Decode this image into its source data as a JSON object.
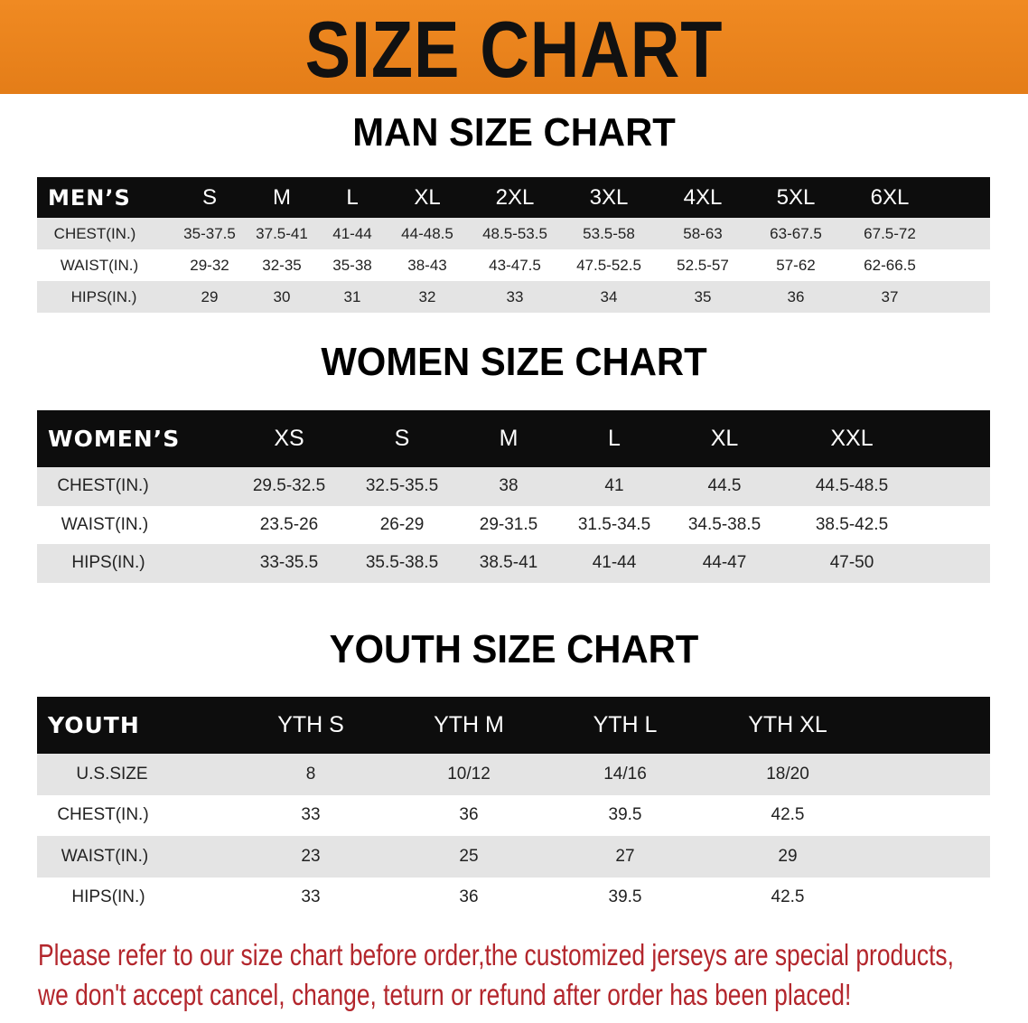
{
  "banner": {
    "title": "SIZE CHART",
    "color": "#e8841f"
  },
  "men": {
    "title": "MAN SIZE CHART",
    "header": "MEN’S",
    "sizes": [
      "S",
      "M",
      "L",
      "XL",
      "2XL",
      "3XL",
      "4XL",
      "5XL",
      "6XL"
    ],
    "rows": [
      {
        "label": "CHEST(IN.)",
        "values": [
          "35-37.5",
          "37.5-41",
          "41-44",
          "44-48.5",
          "48.5-53.5",
          "53.5-58",
          "58-63",
          "63-67.5",
          "67.5-72"
        ]
      },
      {
        "label": "WAIST(IN.)",
        "values": [
          "29-32",
          "32-35",
          "35-38",
          "38-43",
          "43-47.5",
          "47.5-52.5",
          "52.5-57",
          "57-62",
          "62-66.5"
        ]
      },
      {
        "label": "HIPS(IN.)",
        "values": [
          "29",
          "30",
          "31",
          "32",
          "33",
          "34",
          "35",
          "36",
          "37"
        ]
      }
    ]
  },
  "women": {
    "title": "WOMEN SIZE CHART",
    "header": "WOMEN’S",
    "sizes": [
      "XS",
      "S",
      "M",
      "L",
      "XL",
      "XXL"
    ],
    "rows": [
      {
        "label": "CHEST(IN.)",
        "values": [
          "29.5-32.5",
          "32.5-35.5",
          "38",
          "41",
          "44.5",
          "44.5-48.5"
        ]
      },
      {
        "label": "WAIST(IN.)",
        "values": [
          "23.5-26",
          "26-29",
          "29-31.5",
          "31.5-34.5",
          "34.5-38.5",
          "38.5-42.5"
        ]
      },
      {
        "label": "HIPS(IN.)",
        "values": [
          "33-35.5",
          "35.5-38.5",
          "38.5-41",
          "41-44",
          "44-47",
          "47-50"
        ]
      }
    ]
  },
  "youth": {
    "title": "YOUTH SIZE CHART",
    "header": "YOUTH",
    "sizes": [
      "YTH S",
      "YTH M",
      "YTH L",
      "YTH XL"
    ],
    "rows": [
      {
        "label": "U.S.SIZE",
        "values": [
          "8",
          "10/12",
          "14/16",
          "18/20"
        ]
      },
      {
        "label": "CHEST(IN.)",
        "values": [
          "33",
          "36",
          "39.5",
          "42.5"
        ]
      },
      {
        "label": "WAIST(IN.)",
        "values": [
          "23",
          "25",
          "27",
          "29"
        ]
      },
      {
        "label": "HIPS(IN.)",
        "values": [
          "33",
          "36",
          "39.5",
          "42.5"
        ]
      }
    ]
  },
  "note": {
    "line1": "Please refer to our size chart before order,the customized jerseys are special products,",
    "line2": "we don't accept cancel, change, teturn or refund after order has been placed!",
    "color": "#b3262c"
  }
}
